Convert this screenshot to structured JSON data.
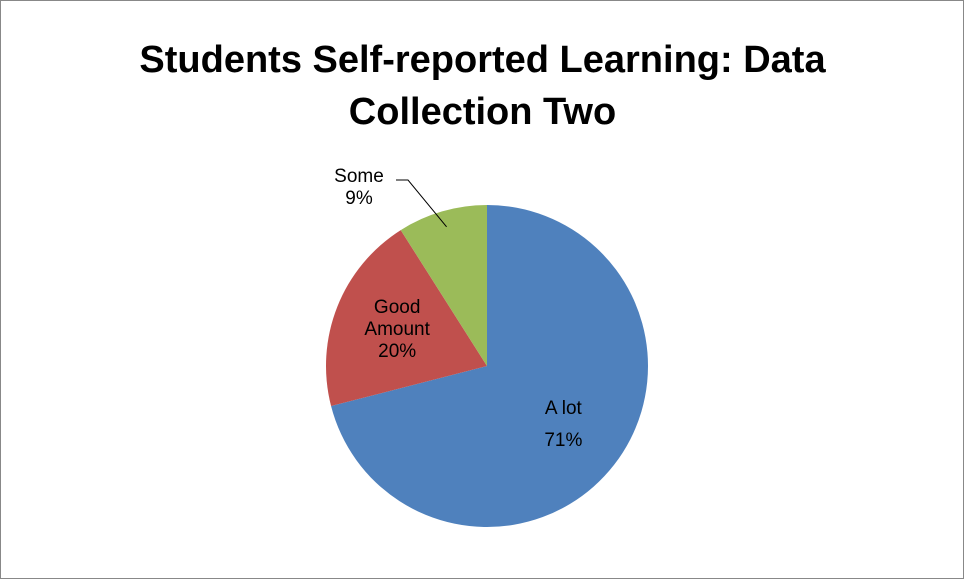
{
  "chart_data": {
    "type": "pie",
    "title": "Students Self-reported Learning: Data Collection Two",
    "categories": [
      "A lot",
      "Good Amount",
      "Some"
    ],
    "values": [
      71,
      20,
      9
    ],
    "value_labels": [
      "71%",
      "20%",
      "9%"
    ],
    "colors": [
      "#4f81bd",
      "#c0504d",
      "#9bbb59"
    ]
  }
}
